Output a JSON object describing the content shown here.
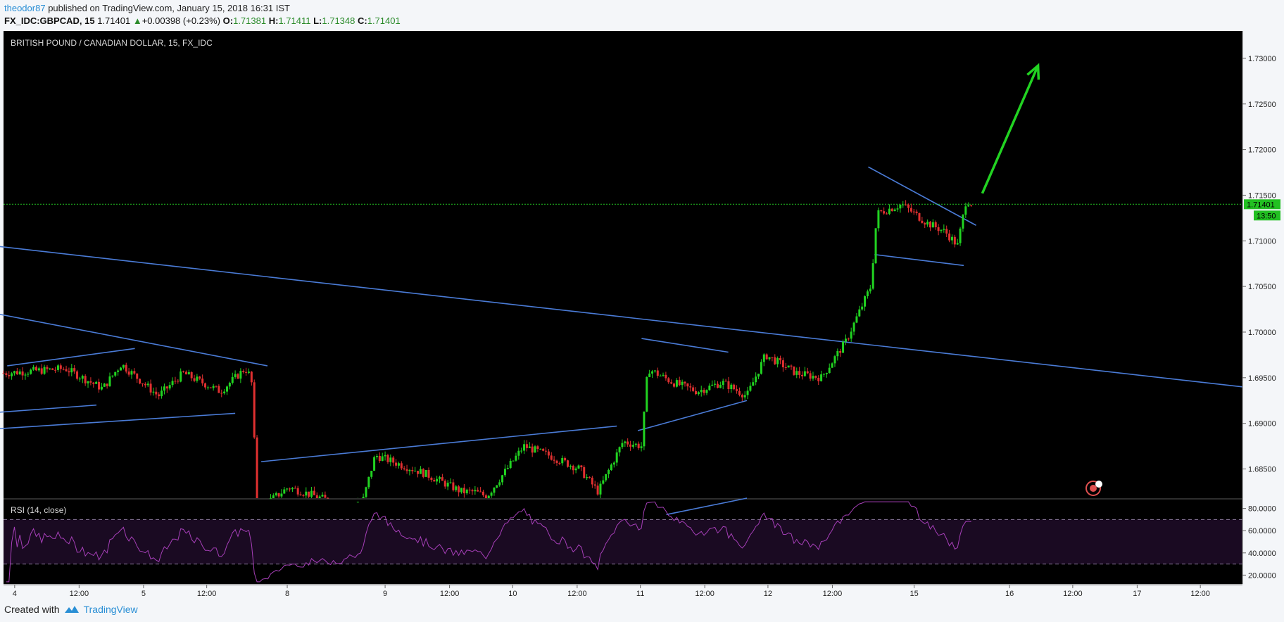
{
  "header": {
    "author": "theodor87",
    "published_text": "published on TradingView.com, January 15, 2018 16:31 IST",
    "symbol": "FX_IDC:GBPCAD, 15",
    "last": "1.71401",
    "change": "+0.00398 (+0.23%)",
    "open_label": "O:",
    "open": "1.71381",
    "high_label": "H:",
    "high": "1.71411",
    "low_label": "L:",
    "low": "1.71348",
    "close_label": "C:",
    "close": "1.71401"
  },
  "footer": {
    "created_with": "Created with",
    "brand": "TradingView"
  },
  "colors": {
    "background": "#000000",
    "up_candle": "#21d321",
    "down_candle": "#e03030",
    "trendline": "#4a7bd6",
    "arrow": "#22d322",
    "rsi_line": "#a63fb8",
    "rsi_band": "#1a0a22",
    "price_line": "#22c022"
  },
  "chart_data": {
    "type": "candlestick",
    "title": "BRITISH POUND / CANADIAN DOLLAR, 15, FX_IDC",
    "price_axis": {
      "ticks": [
        "1.73000",
        "1.72500",
        "1.72000",
        "1.71500",
        "1.71000",
        "1.70500",
        "1.70000",
        "1.69500",
        "1.69000",
        "1.68500"
      ],
      "range": [
        1.6818,
        1.733
      ]
    },
    "last_price_label": "1.71401",
    "countdown_label": "13:50",
    "time_axis": {
      "labels": [
        "4",
        "12:00",
        "5",
        "12:00",
        "8",
        "9",
        "12:00",
        "10",
        "12:00",
        "11",
        "12:00",
        "12",
        "12:00",
        "15",
        "16",
        "12:00",
        "17",
        "12:00"
      ]
    },
    "price_path": [
      [
        0,
        1.6955
      ],
      [
        0.05,
        1.696
      ],
      [
        0.08,
        1.6938
      ],
      [
        0.095,
        1.6965
      ],
      [
        0.125,
        1.693
      ],
      [
        0.145,
        1.6955
      ],
      [
        0.175,
        1.6935
      ],
      [
        0.195,
        1.696
      ],
      [
        0.2,
        1.695
      ],
      [
        0.205,
        1.6805
      ],
      [
        0.23,
        1.683
      ],
      [
        0.27,
        1.6812
      ],
      [
        0.29,
        1.6815
      ],
      [
        0.3,
        1.6865
      ],
      [
        0.34,
        1.6845
      ],
      [
        0.37,
        1.6825
      ],
      [
        0.38,
        1.6825
      ],
      [
        0.39,
        1.682
      ],
      [
        0.42,
        1.6875
      ],
      [
        0.44,
        1.6865
      ],
      [
        0.465,
        1.685
      ],
      [
        0.48,
        1.6825
      ],
      [
        0.5,
        1.688
      ],
      [
        0.515,
        1.6875
      ],
      [
        0.52,
        1.696
      ],
      [
        0.54,
        1.6945
      ],
      [
        0.56,
        1.6935
      ],
      [
        0.58,
        1.6945
      ],
      [
        0.6,
        1.693
      ],
      [
        0.615,
        1.6975
      ],
      [
        0.64,
        1.6955
      ],
      [
        0.66,
        1.695
      ],
      [
        0.68,
        1.699
      ],
      [
        0.7,
        1.705
      ],
      [
        0.705,
        1.713
      ],
      [
        0.725,
        1.714
      ],
      [
        0.745,
        1.712
      ],
      [
        0.76,
        1.711
      ],
      [
        0.77,
        1.7095
      ],
      [
        0.777,
        1.7145
      ],
      [
        0.782,
        1.714
      ]
    ],
    "trendlines": [
      {
        "from": [
          -0.005,
          1.7094
        ],
        "to": [
          1.0,
          1.694
        ]
      },
      {
        "from": [
          -0.005,
          1.702
        ],
        "to": [
          0.213,
          1.6963
        ]
      },
      {
        "from": [
          0.003,
          1.6963
        ],
        "to": [
          0.106,
          1.6982
        ]
      },
      {
        "from": [
          -0.005,
          1.6912
        ],
        "to": [
          0.075,
          1.692
        ]
      },
      {
        "from": [
          -0.005,
          1.6894
        ],
        "to": [
          0.187,
          1.6911
        ]
      },
      {
        "from": [
          0.208,
          1.6858
        ],
        "to": [
          0.495,
          1.6897
        ]
      },
      {
        "from": [
          0.515,
          1.6993
        ],
        "to": [
          0.585,
          1.6978
        ]
      },
      {
        "from": [
          0.512,
          1.6892
        ],
        "to": [
          0.6,
          1.6925
        ]
      },
      {
        "from": [
          0.535,
          1.68
        ],
        "to": [
          0.6,
          1.6818
        ]
      },
      {
        "from": [
          0.698,
          1.7181
        ],
        "to": [
          0.785,
          1.7117
        ]
      },
      {
        "from": [
          0.703,
          1.7085
        ],
        "to": [
          0.775,
          1.7073
        ]
      }
    ],
    "arrow": {
      "from": [
        0.79,
        1.7152
      ],
      "to": [
        0.835,
        1.7292
      ]
    },
    "rsi": {
      "label": "RSI (14, close)",
      "ticks": [
        "80.0000",
        "60.0000",
        "40.0000",
        "20.0000"
      ],
      "range": [
        12,
        88
      ],
      "upper_band": 70,
      "lower_band": 30
    },
    "grid": false,
    "legend": "none"
  }
}
